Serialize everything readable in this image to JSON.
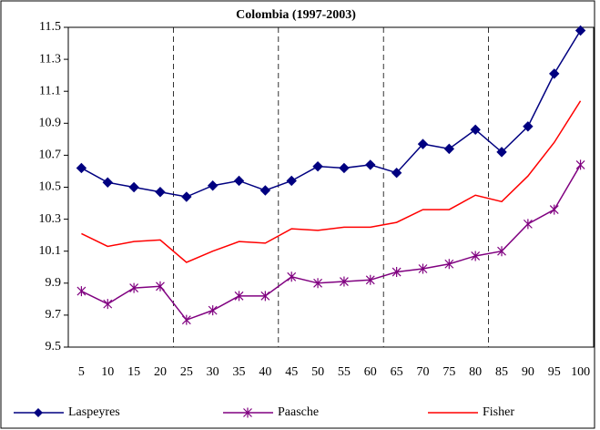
{
  "chart_data": {
    "type": "line",
    "title": "Colombia (1997-2003)",
    "categories": [
      5,
      10,
      15,
      20,
      25,
      30,
      35,
      40,
      45,
      50,
      55,
      60,
      65,
      70,
      75,
      80,
      85,
      90,
      95,
      100
    ],
    "series": [
      {
        "name": "Laspeyres",
        "color": "#000080",
        "marker": "diamond",
        "values": [
          10.62,
          10.53,
          10.5,
          10.47,
          10.44,
          10.51,
          10.54,
          10.48,
          10.54,
          10.63,
          10.62,
          10.64,
          10.59,
          10.77,
          10.74,
          10.86,
          10.72,
          10.88,
          11.21,
          11.48
        ]
      },
      {
        "name": "Paasche",
        "color": "#800080",
        "marker": "asterisk",
        "values": [
          9.85,
          9.77,
          9.87,
          9.88,
          9.67,
          9.73,
          9.82,
          9.82,
          9.94,
          9.9,
          9.91,
          9.92,
          9.97,
          9.99,
          10.02,
          10.07,
          10.1,
          10.27,
          10.36,
          10.64
        ]
      },
      {
        "name": "Fisher",
        "color": "#ff0000",
        "marker": "none",
        "values": [
          10.21,
          10.13,
          10.16,
          10.17,
          10.03,
          10.1,
          10.16,
          10.15,
          10.24,
          10.23,
          10.25,
          10.25,
          10.28,
          10.36,
          10.36,
          10.45,
          10.41,
          10.57,
          10.78,
          11.04
        ]
      }
    ],
    "ylim": [
      9.5,
      11.5
    ],
    "yticks": [
      9.5,
      9.7,
      9.9,
      10.1,
      10.3,
      10.5,
      10.7,
      10.9,
      11.1,
      11.3,
      11.5
    ],
    "grid": false,
    "legend": "bottom"
  }
}
